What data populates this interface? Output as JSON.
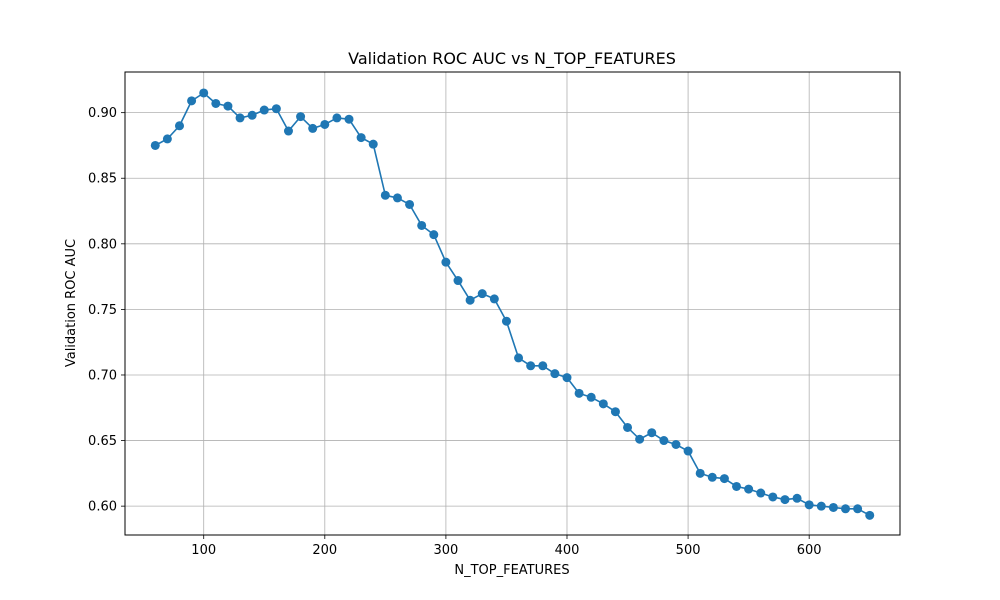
{
  "chart_data": {
    "type": "line",
    "title": "Validation ROC AUC vs N_TOP_FEATURES",
    "xlabel": "N_TOP_FEATURES",
    "ylabel": "Validation ROC AUC",
    "xlim": [
      35,
      675
    ],
    "ylim": [
      0.578,
      0.931
    ],
    "xticks": [
      100,
      200,
      300,
      400,
      500,
      600
    ],
    "yticks": [
      0.6,
      0.65,
      0.7,
      0.75,
      0.8,
      0.85,
      0.9
    ],
    "ytick_labels": [
      "0.60",
      "0.65",
      "0.70",
      "0.75",
      "0.80",
      "0.85",
      "0.90"
    ],
    "xtick_labels": [
      "100",
      "200",
      "300",
      "400",
      "500",
      "600"
    ],
    "grid": true,
    "marker": "circle",
    "series": [
      {
        "color": "#1f77b4",
        "x": [
          60,
          70,
          80,
          90,
          100,
          110,
          120,
          130,
          140,
          150,
          160,
          170,
          180,
          190,
          200,
          210,
          220,
          230,
          240,
          250,
          260,
          270,
          280,
          290,
          300,
          310,
          320,
          330,
          340,
          350,
          360,
          370,
          380,
          390,
          400,
          410,
          420,
          430,
          440,
          450,
          460,
          470,
          480,
          490,
          500,
          510,
          520,
          530,
          540,
          550,
          560,
          570,
          580,
          590,
          600,
          610,
          620,
          630,
          640,
          650
        ],
        "y": [
          0.875,
          0.88,
          0.89,
          0.909,
          0.915,
          0.907,
          0.905,
          0.896,
          0.898,
          0.902,
          0.903,
          0.886,
          0.897,
          0.888,
          0.891,
          0.896,
          0.895,
          0.881,
          0.876,
          0.837,
          0.835,
          0.83,
          0.814,
          0.807,
          0.786,
          0.772,
          0.757,
          0.762,
          0.758,
          0.741,
          0.713,
          0.707,
          0.707,
          0.701,
          0.698,
          0.686,
          0.683,
          0.678,
          0.672,
          0.66,
          0.651,
          0.656,
          0.65,
          0.647,
          0.642,
          0.625,
          0.622,
          0.621,
          0.615,
          0.613,
          0.61,
          0.607,
          0.605,
          0.606,
          0.601,
          0.6,
          0.599,
          0.598,
          0.598,
          0.593
        ]
      }
    ]
  }
}
